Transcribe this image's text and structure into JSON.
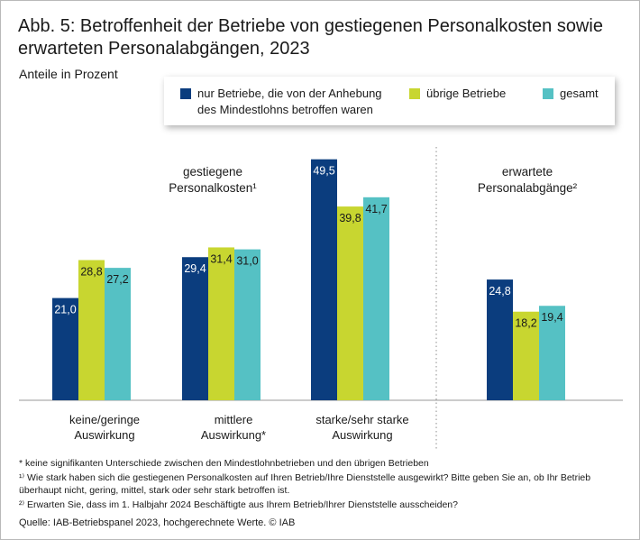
{
  "title": "Abb. 5: Betroffenheit der Betriebe von gestiegenen Personalkosten sowie erwarteten Personalabgängen, 2023",
  "subtitle": "Anteile in Prozent",
  "legend": {
    "items": [
      {
        "label": "nur Betriebe, die von der Anhebung des Mindestlohns betroffen waren",
        "color": "#0b3d7e"
      },
      {
        "label": "übrige Betriebe",
        "color": "#c8d630"
      },
      {
        "label": "gesamt",
        "color": "#55c1c4"
      }
    ]
  },
  "chart_data": {
    "type": "bar",
    "title": "Betroffenheit der Betriebe von gestiegenen Personalkosten sowie erwarteten Personalabgängen, 2023",
    "ylabel": "Anteile in Prozent",
    "ylim": [
      0,
      55
    ],
    "grid": false,
    "legend_position": "top",
    "groups": [
      {
        "label": "gestiegene Personalkosten¹",
        "categories": [
          "keine/geringe Auswirkung",
          "mittlere Auswirkung*",
          "starke/sehr starke Auswirkung"
        ]
      },
      {
        "label": "erwartete Personalabgänge²",
        "categories": [
          ""
        ]
      }
    ],
    "categories": [
      "keine/geringe Auswirkung",
      "mittlere Auswirkung*",
      "starke/sehr starke Auswirkung",
      ""
    ],
    "series": [
      {
        "name": "nur Betriebe, die von der Anhebung des Mindestlohns betroffen waren",
        "values": [
          21.0,
          29.4,
          49.5,
          24.8
        ],
        "labels": [
          "21,0",
          "29,4",
          "49,5",
          "24,8"
        ]
      },
      {
        "name": "übrige Betriebe",
        "values": [
          28.8,
          31.4,
          39.8,
          18.2
        ],
        "labels": [
          "28,8",
          "31,4",
          "39,8",
          "18,2"
        ]
      },
      {
        "name": "gesamt",
        "values": [
          27.2,
          31.0,
          41.7,
          19.4
        ],
        "labels": [
          "27,2",
          "31,0",
          "41,7",
          "19,4"
        ]
      }
    ]
  },
  "footnotes": [
    "* keine signifikanten Unterschiede zwischen den Mindestlohnbetrieben und den übrigen Betrieben",
    "¹⁾ Wie stark haben sich die gestiegenen Personalkosten auf Ihren Betrieb/Ihre Dienststelle ausgewirkt? Bitte geben Sie an, ob Ihr Betrieb überhaupt nicht, gering, mittel, stark oder sehr stark betroffen ist.",
    "²⁾ Erwarten Sie, dass im 1. Halbjahr 2024 Beschäftigte aus Ihrem Betrieb/Ihrer Dienststelle ausscheiden?"
  ],
  "source": "Quelle: IAB-Betriebspanel 2023, hochgerechnete Werte.  © IAB"
}
